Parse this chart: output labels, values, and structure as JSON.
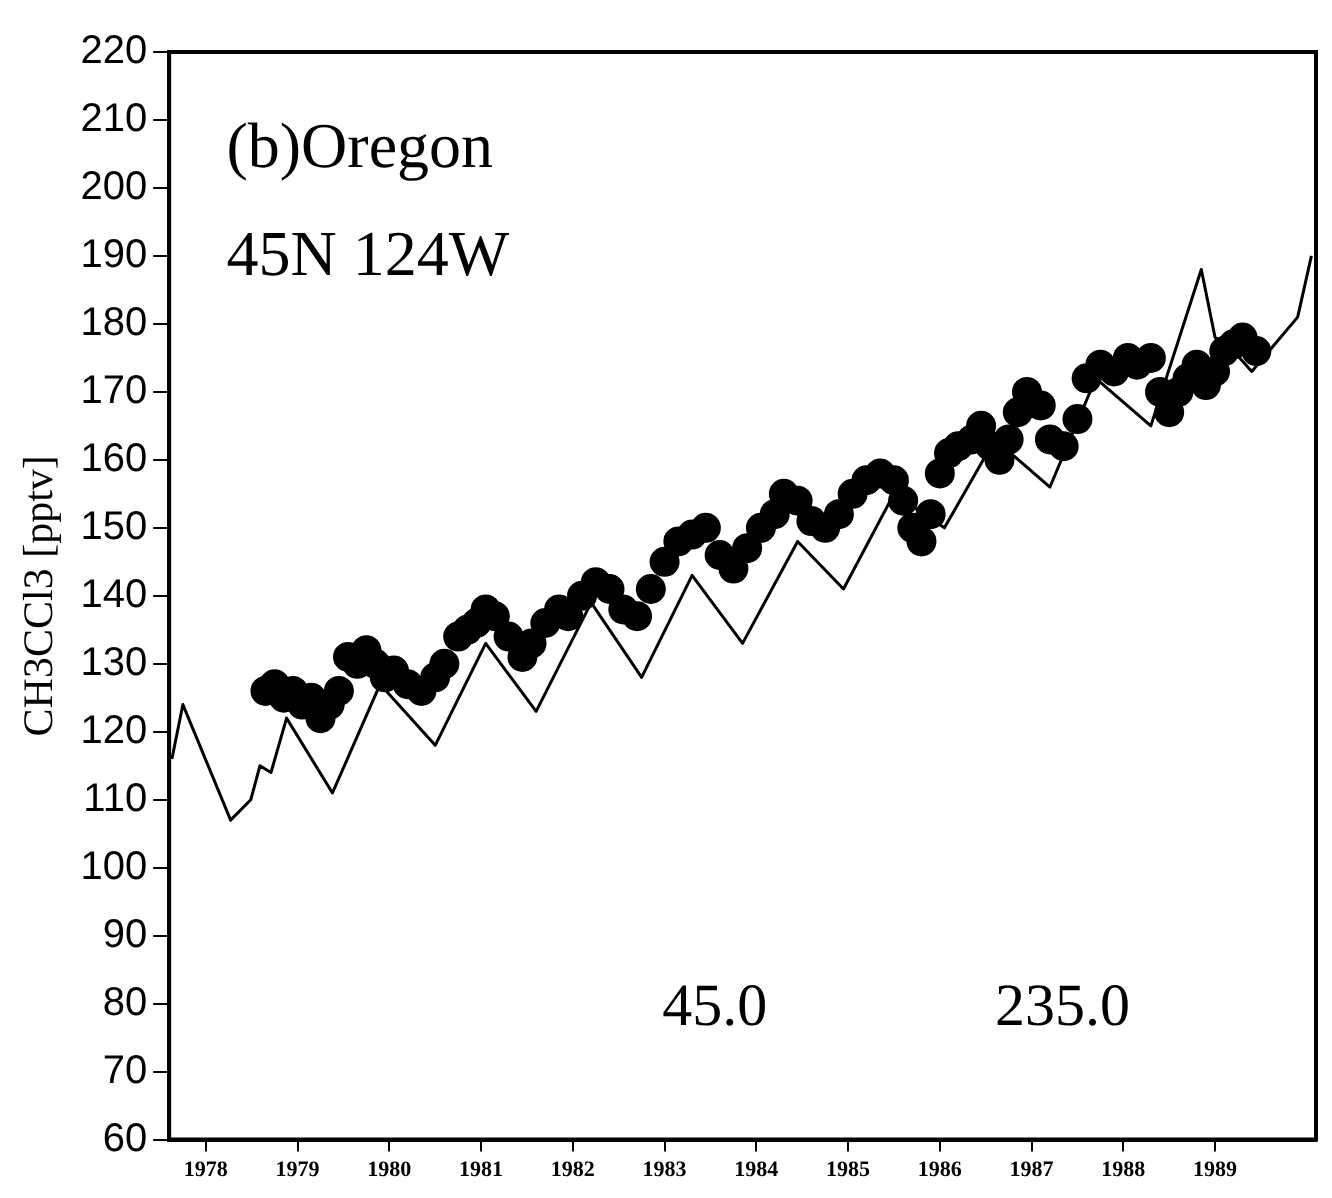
{
  "chart_data": {
    "type": "line",
    "ylabel": "CH3CCl3 [pptv]",
    "annotations": [
      "(b)Oregon",
      "45N 124W",
      "45.0",
      "235.0"
    ],
    "xlim": [
      1977.6,
      1990.1
    ],
    "xticks": [
      1978,
      1979,
      1980,
      1981,
      1982,
      1983,
      1984,
      1985,
      1986,
      1987,
      1988,
      1989
    ],
    "ylim": [
      60,
      220
    ],
    "yticks": [
      60,
      70,
      80,
      90,
      100,
      110,
      120,
      130,
      140,
      150,
      160,
      170,
      180,
      190,
      200,
      210,
      220
    ],
    "grid": false,
    "legend": false,
    "series": [
      {
        "color": "#000000",
        "marker": "none",
        "line_style": "solid",
        "x": [
          1977.63,
          1977.75,
          1978.27,
          1978.49,
          1978.59,
          1978.71,
          1978.88,
          1979.38,
          1979.9,
          1980.5,
          1981.05,
          1981.6,
          1982.2,
          1982.75,
          1983.3,
          1983.85,
          1984.45,
          1984.95,
          1985.5,
          1986.05,
          1986.6,
          1987.2,
          1987.7,
          1988.3,
          1988.85,
          1989.0,
          1989.2,
          1989.4,
          1989.9,
          1990.05
        ],
        "values": [
          116,
          124,
          107,
          110,
          115,
          114,
          122,
          111,
          127,
          118,
          133,
          123,
          139,
          128,
          143,
          133,
          148,
          141,
          155,
          150,
          163,
          156,
          172,
          165,
          188,
          178,
          176,
          173,
          181,
          190
        ]
      },
      {
        "type": "scatter",
        "color": "#000000",
        "marker": "circle",
        "x": [
          1978.65,
          1978.75,
          1978.85,
          1978.95,
          1979.05,
          1979.15,
          1979.25,
          1979.35,
          1979.45,
          1979.55,
          1979.65,
          1979.75,
          1979.85,
          1979.95,
          1980.05,
          1980.2,
          1980.35,
          1980.5,
          1980.6,
          1980.75,
          1980.85,
          1980.95,
          1981.05,
          1981.15,
          1981.3,
          1981.45,
          1981.55,
          1981.7,
          1981.85,
          1981.95,
          1982.1,
          1982.25,
          1982.4,
          1982.55,
          1982.7,
          1982.85,
          1983.0,
          1983.15,
          1983.3,
          1983.45,
          1983.6,
          1983.75,
          1983.9,
          1984.05,
          1984.2,
          1984.3,
          1984.45,
          1984.6,
          1984.75,
          1984.9,
          1985.05,
          1985.2,
          1985.35,
          1985.5,
          1985.6,
          1985.7,
          1985.8,
          1985.9,
          1986.0,
          1986.1,
          1986.2,
          1986.35,
          1986.45,
          1986.55,
          1986.65,
          1986.75,
          1986.85,
          1986.95,
          1987.1,
          1987.2,
          1987.35,
          1987.5,
          1987.6,
          1987.75,
          1987.9,
          1988.05,
          1988.15,
          1988.3,
          1988.4,
          1988.5,
          1988.6,
          1988.7,
          1988.8,
          1988.9,
          1989.0,
          1989.1,
          1989.2,
          1989.3,
          1989.45
        ],
        "values": [
          126,
          127,
          125,
          126,
          124,
          125,
          122,
          124,
          126,
          131,
          130,
          132,
          130,
          128,
          129,
          127,
          126,
          128,
          130,
          134,
          135,
          136,
          138,
          137,
          134,
          131,
          133,
          136,
          138,
          137,
          140,
          142,
          141,
          138,
          137,
          141,
          145,
          148,
          149,
          150,
          146,
          144,
          147,
          150,
          152,
          155,
          154,
          151,
          150,
          152,
          155,
          157,
          158,
          157,
          154,
          150,
          148,
          152,
          158,
          161,
          162,
          163,
          165,
          162,
          160,
          163,
          167,
          170,
          168,
          163,
          162,
          166,
          172,
          174,
          173,
          175,
          174,
          175,
          170,
          167,
          170,
          172,
          174,
          171,
          173,
          176,
          177,
          178,
          176
        ]
      }
    ]
  }
}
